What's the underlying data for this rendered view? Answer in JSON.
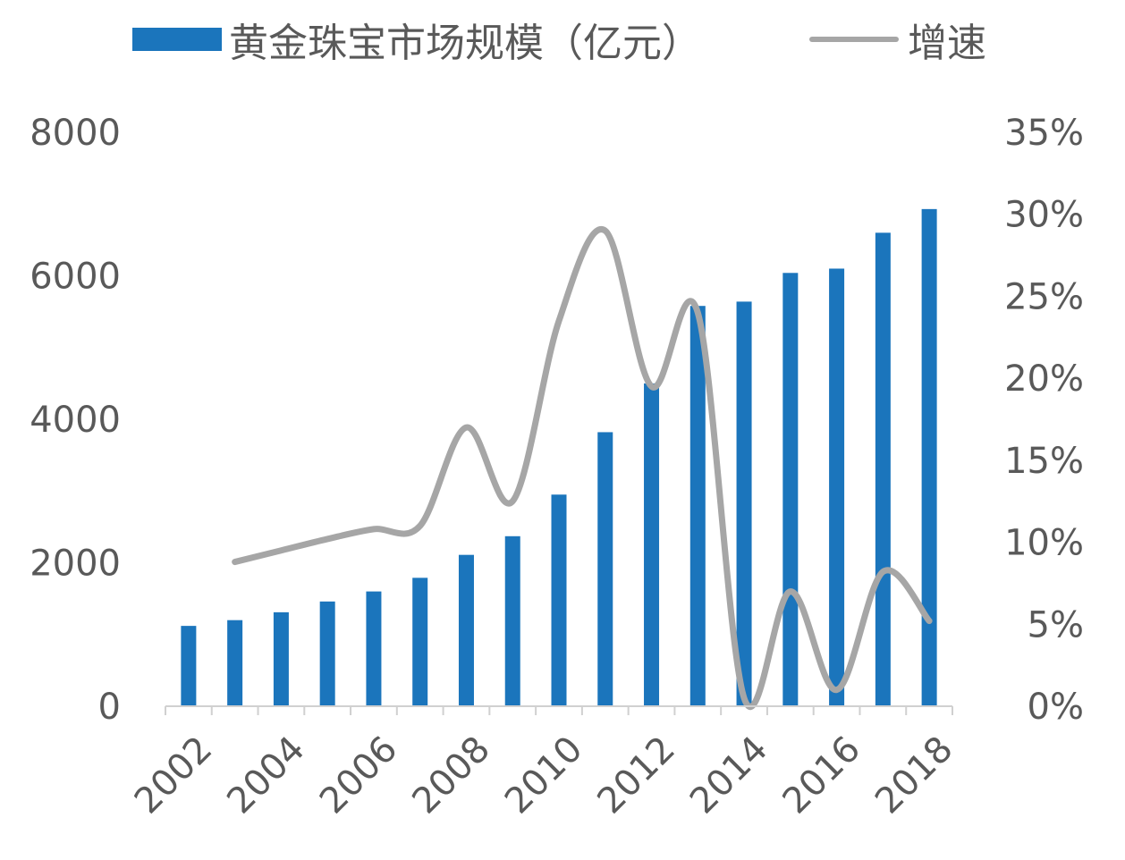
{
  "legend": {
    "bar_label": "黄金珠宝市场规模（亿元）",
    "line_label": "增速"
  },
  "colors": {
    "bar": "#1b75bc",
    "line": "#a6a6a6",
    "axis": "#d0d0d0",
    "text": "#595959"
  },
  "chart_data": {
    "type": "bar",
    "title": "",
    "xlabel": "",
    "ylabel": "",
    "categories": [
      "2002",
      "2003",
      "2004",
      "2005",
      "2006",
      "2007",
      "2008",
      "2009",
      "2010",
      "2011",
      "2012",
      "2013",
      "2014",
      "2015",
      "2016",
      "2017",
      "2018"
    ],
    "x_tick_labels": [
      "2002",
      "2004",
      "2006",
      "2008",
      "2010",
      "2012",
      "2014",
      "2016",
      "2018"
    ],
    "series": [
      {
        "name": "黄金珠宝市场规模（亿元）",
        "type": "bar",
        "axis": "left",
        "values": [
          1120,
          1200,
          1310,
          1460,
          1600,
          1790,
          2110,
          2370,
          2950,
          3820,
          4500,
          5580,
          5640,
          6040,
          6100,
          6600,
          6930
        ]
      },
      {
        "name": "增速",
        "type": "line",
        "axis": "right",
        "smooth": true,
        "values": [
          null,
          8.8,
          9.5,
          10.2,
          10.8,
          11.0,
          17.0,
          12.5,
          23.5,
          29.0,
          19.5,
          24.0,
          0.5,
          7.0,
          1.0,
          8.2,
          5.2
        ]
      }
    ],
    "y_left": {
      "min": 0,
      "max": 8000,
      "ticks": [
        0,
        2000,
        4000,
        6000,
        8000
      ],
      "tick_labels": [
        "0",
        "2000",
        "4000",
        "6000",
        "8000"
      ]
    },
    "y_right": {
      "min": 0,
      "max": 35,
      "ticks": [
        0,
        5,
        10,
        15,
        20,
        25,
        30,
        35
      ],
      "tick_labels": [
        "0%",
        "5%",
        "10%",
        "15%",
        "20%",
        "25%",
        "30%",
        "35%"
      ]
    },
    "grid": false,
    "legend_position": "top"
  }
}
